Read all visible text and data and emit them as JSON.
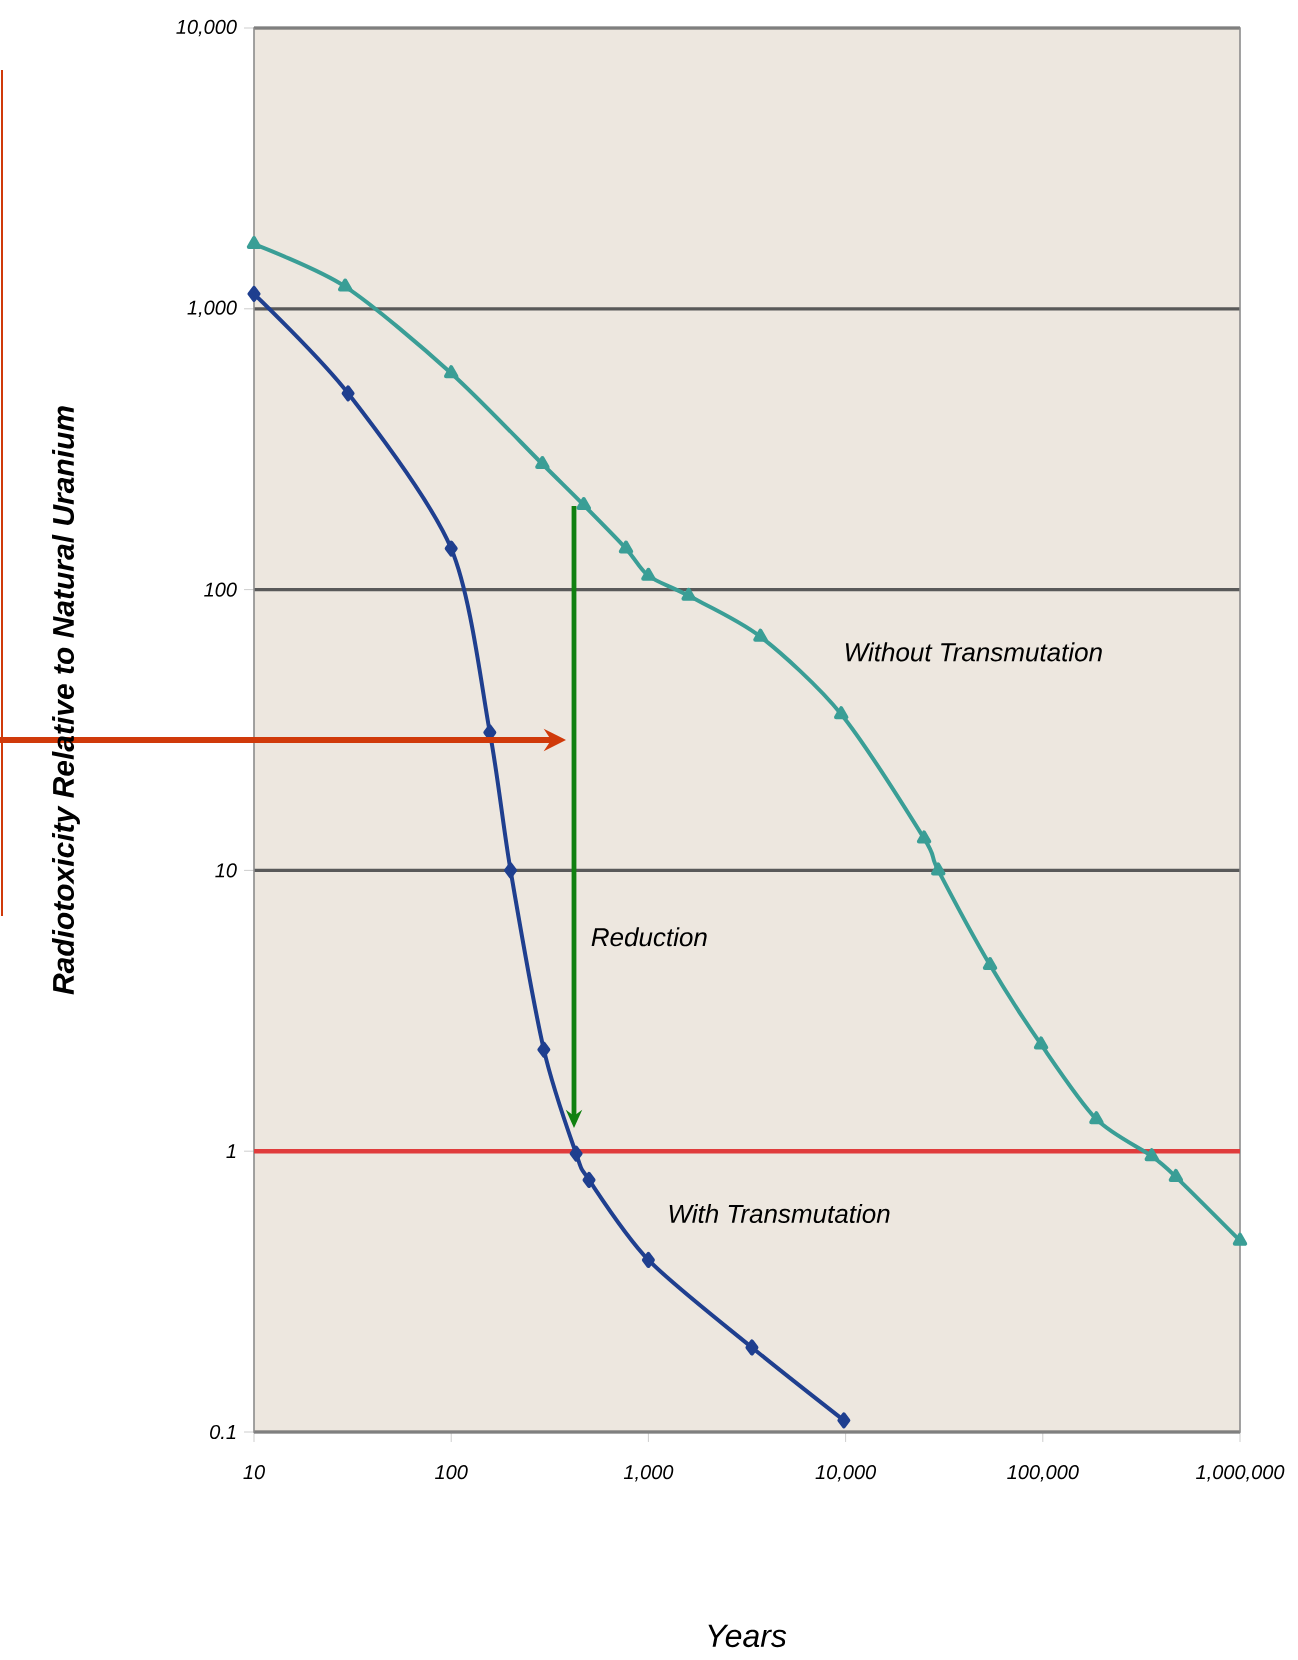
{
  "chart_data": {
    "type": "line",
    "log": "xy",
    "xlabel": "Years",
    "ylabel": "Radiotoxicity Relative to Natural Uranium",
    "xlim": [
      10,
      1000000
    ],
    "ylim": [
      0.1,
      10000
    ],
    "xticks": [
      {
        "value": 10,
        "label": "10"
      },
      {
        "value": 100,
        "label": "100"
      },
      {
        "value": 1000,
        "label": "1,000"
      },
      {
        "value": 10000,
        "label": "10,000"
      },
      {
        "value": 100000,
        "label": "100,000"
      },
      {
        "value": 1000000,
        "label": "1,000,000"
      }
    ],
    "yticks": [
      {
        "value": 0.1,
        "label": "0.1"
      },
      {
        "value": 1,
        "label": "1"
      },
      {
        "value": 10,
        "label": "10"
      },
      {
        "value": 100,
        "label": "100"
      },
      {
        "value": 1000,
        "label": "1,000"
      },
      {
        "value": 10000,
        "label": "10,000"
      }
    ],
    "grid": "y",
    "series": [
      {
        "color": "#3a9e96",
        "marker": "triangle",
        "x": [
          10,
          29,
          100,
          290,
          470,
          770,
          1000,
          1600,
          3700,
          9500,
          25000,
          29500,
          54000,
          98000,
          187000,
          357000,
          473000,
          1000000
        ],
        "values": [
          1700,
          1200,
          590,
          280,
          200,
          140,
          112,
          95,
          68,
          36,
          13,
          10,
          4.6,
          2.4,
          1.3,
          0.96,
          0.81,
          0.48
        ]
      },
      {
        "color": "#1f3f8f",
        "marker": "diamond",
        "x": [
          10,
          30,
          100,
          157,
          200,
          295,
          430,
          500,
          1000,
          3350,
          9800
        ],
        "values": [
          1130,
          500,
          140,
          31,
          10,
          2.3,
          0.98,
          0.79,
          0.41,
          0.2,
          0.11
        ]
      }
    ],
    "ref_lines": [
      {
        "axis": "y",
        "value": 1,
        "color": "#e03c3c"
      }
    ],
    "annotations": [
      "Without Transmutation",
      "Reduction",
      "With Transmutation"
    ]
  }
}
